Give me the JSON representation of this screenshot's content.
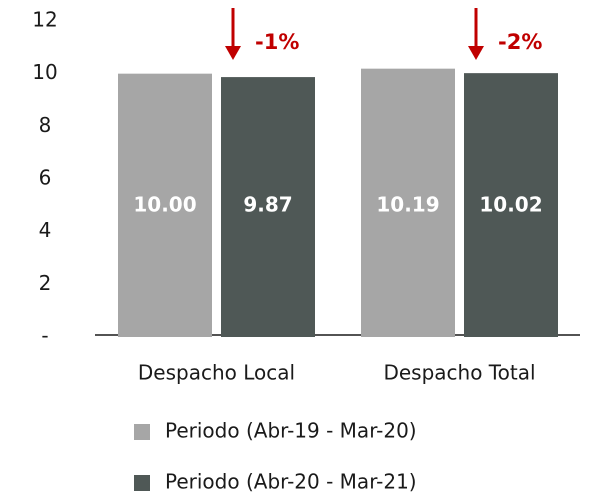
{
  "chart_data": {
    "type": "bar",
    "categories": [
      "Despacho Local",
      "Despacho Total"
    ],
    "series": [
      {
        "name": "Periodo (Abr-19 - Mar-20)",
        "color": "#a6a6a6",
        "values": [
          10.0,
          10.19
        ],
        "value_labels": [
          "10.00",
          "10.19"
        ]
      },
      {
        "name": "Periodo (Abr-20 - Mar-21)",
        "color": "#4f5856",
        "values": [
          9.87,
          10.02
        ],
        "value_labels": [
          "9.87",
          "10.02"
        ]
      }
    ],
    "ylim": [
      0,
      12
    ],
    "yticks": [
      {
        "value": 0,
        "label": "-"
      },
      2,
      4,
      6,
      8,
      10,
      12
    ],
    "annotations": [
      {
        "text": "-1%"
      },
      {
        "text": "-2%"
      }
    ],
    "annotation_color": "#c00000"
  }
}
